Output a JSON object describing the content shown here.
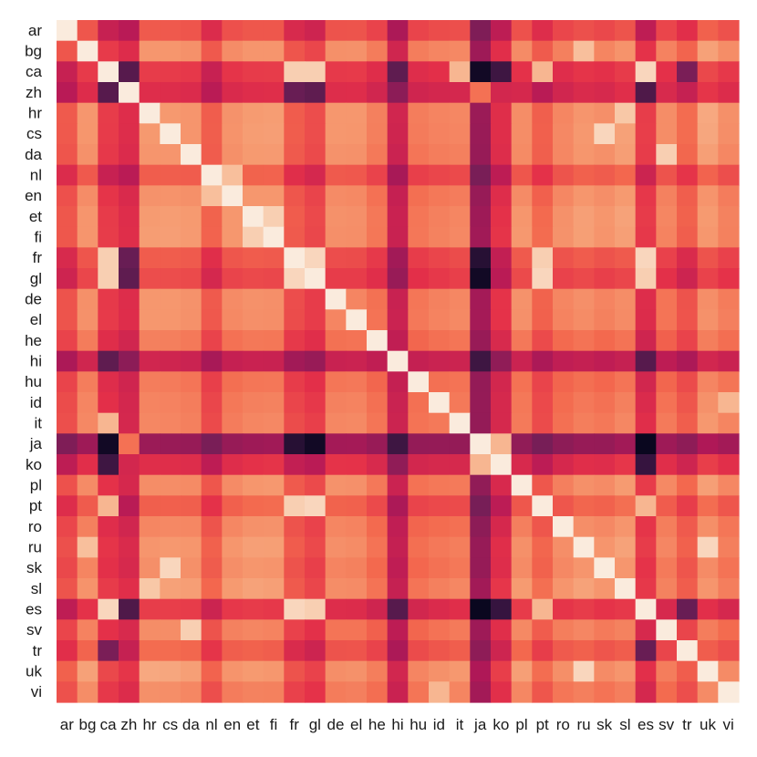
{
  "chart_data": {
    "type": "heatmap",
    "title": "",
    "xlabel": "",
    "ylabel": "",
    "labels": [
      "ar",
      "bg",
      "ca",
      "zh",
      "hr",
      "cs",
      "da",
      "nl",
      "en",
      "et",
      "fi",
      "fr",
      "gl",
      "de",
      "el",
      "he",
      "hi",
      "hu",
      "id",
      "it",
      "ja",
      "ko",
      "pl",
      "pt",
      "ro",
      "ru",
      "sk",
      "sl",
      "es",
      "sv",
      "tr",
      "uk",
      "vi"
    ],
    "legend": "none",
    "colormap": "rocket",
    "diagonal": 1.0,
    "row_base": [
      0.52,
      0.78,
      0.42,
      0.36,
      0.8,
      0.8,
      0.78,
      0.54,
      0.76,
      0.8,
      0.8,
      0.52,
      0.46,
      0.76,
      0.76,
      0.66,
      0.3,
      0.66,
      0.7,
      0.72,
      0.18,
      0.38,
      0.76,
      0.56,
      0.72,
      0.78,
      0.74,
      0.8,
      0.4,
      0.7,
      0.56,
      0.82,
      0.72
    ],
    "special_pairs": [
      {
        "a": "ca",
        "b": "es",
        "v": 0.94
      },
      {
        "a": "ca",
        "b": "fr",
        "v": 0.92
      },
      {
        "a": "ca",
        "b": "gl",
        "v": 0.92
      },
      {
        "a": "ca",
        "b": "pt",
        "v": 0.86
      },
      {
        "a": "ca",
        "b": "it",
        "v": 0.86
      },
      {
        "a": "fr",
        "b": "gl",
        "v": 0.94
      },
      {
        "a": "fr",
        "b": "pt",
        "v": 0.92
      },
      {
        "a": "fr",
        "b": "es",
        "v": 0.94
      },
      {
        "a": "gl",
        "b": "pt",
        "v": 0.94
      },
      {
        "a": "gl",
        "b": "es",
        "v": 0.92
      },
      {
        "a": "pt",
        "b": "es",
        "v": 0.86
      },
      {
        "a": "ca",
        "b": "zh",
        "v": 0.22
      },
      {
        "a": "zh",
        "b": "es",
        "v": 0.2
      },
      {
        "a": "zh",
        "b": "fr",
        "v": 0.26
      },
      {
        "a": "zh",
        "b": "gl",
        "v": 0.24
      },
      {
        "a": "zh",
        "b": "ja",
        "v": 0.7
      },
      {
        "a": "zh",
        "b": "ko",
        "v": 0.5
      },
      {
        "a": "ja",
        "b": "ko",
        "v": 0.86
      },
      {
        "a": "ja",
        "b": "es",
        "v": 0.02
      },
      {
        "a": "ja",
        "b": "ca",
        "v": 0.04
      },
      {
        "a": "ja",
        "b": "gl",
        "v": 0.04
      },
      {
        "a": "ja",
        "b": "fr",
        "v": 0.1
      },
      {
        "a": "ko",
        "b": "es",
        "v": 0.14
      },
      {
        "a": "ko",
        "b": "ca",
        "v": 0.16
      },
      {
        "a": "hi",
        "b": "es",
        "v": 0.22
      },
      {
        "a": "hi",
        "b": "ca",
        "v": 0.24
      },
      {
        "a": "hi",
        "b": "ja",
        "v": 0.16
      },
      {
        "a": "cs",
        "b": "sk",
        "v": 0.94
      },
      {
        "a": "hr",
        "b": "sl",
        "v": 0.9
      },
      {
        "a": "ru",
        "b": "uk",
        "v": 0.94
      },
      {
        "a": "bg",
        "b": "ru",
        "v": 0.88
      },
      {
        "a": "et",
        "b": "fi",
        "v": 0.92
      },
      {
        "a": "da",
        "b": "sv",
        "v": 0.92
      },
      {
        "a": "id",
        "b": "vi",
        "v": 0.86
      },
      {
        "a": "en",
        "b": "nl",
        "v": 0.88
      },
      {
        "a": "tr",
        "b": "es",
        "v": 0.26
      },
      {
        "a": "tr",
        "b": "ca",
        "v": 0.3
      }
    ]
  }
}
